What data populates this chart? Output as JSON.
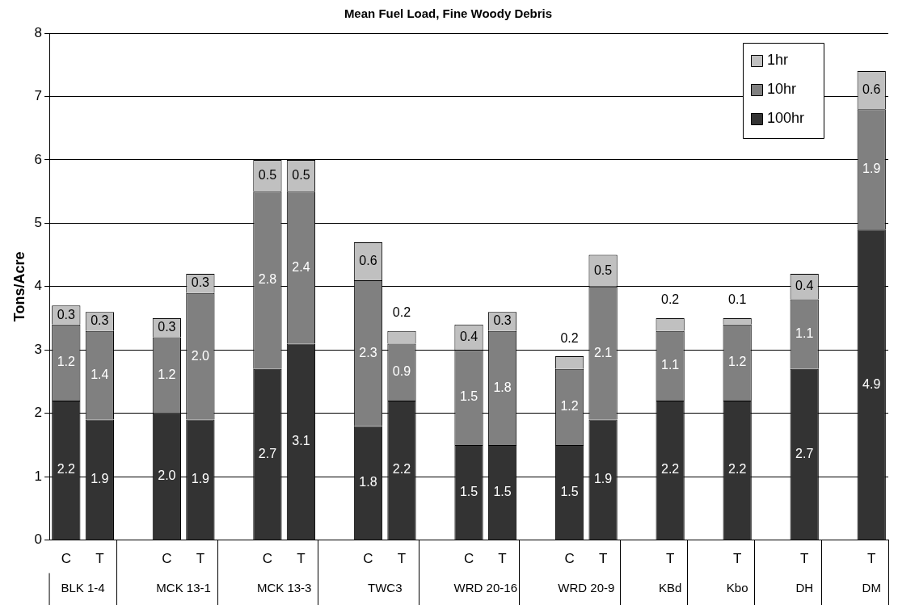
{
  "chart_data": {
    "type": "bar",
    "title": "Mean Fuel Load, Fine Woody Debris",
    "ylabel": "Tons/Acre",
    "categories": [
      "C",
      "T",
      null,
      "C",
      "T",
      null,
      "C",
      "T",
      null,
      "C",
      "T",
      null,
      "C",
      "T",
      null,
      "C",
      "T",
      null,
      "T",
      null,
      "T",
      null,
      "T",
      null,
      "T"
    ],
    "annotations": [
      "BLK 1-4",
      "MCK 13-1",
      "MCK 13-3",
      "TWC3",
      "WRD 20-16",
      "WRD 20-9",
      "KBd",
      "Kbo",
      "DH",
      "DM"
    ],
    "stacked": true,
    "series": [
      {
        "name": "100hr",
        "color": "#333333",
        "values": [
          2.2,
          1.9,
          null,
          2.0,
          1.9,
          null,
          2.7,
          3.1,
          null,
          1.8,
          2.2,
          null,
          1.5,
          1.5,
          null,
          1.5,
          1.9,
          null,
          2.2,
          null,
          2.2,
          null,
          2.7,
          null,
          4.9
        ],
        "value_labels": [
          "2.2",
          "1.9",
          null,
          "2.0",
          "1.9",
          null,
          "2.7",
          "3.1",
          null,
          "1.8",
          "2.2",
          null,
          "1.5",
          "1.5",
          null,
          "1.5",
          "1.9",
          null,
          "2.2",
          null,
          "2.2",
          null,
          "2.7",
          null,
          "4.9"
        ]
      },
      {
        "name": "10hr",
        "color": "#808080",
        "values": [
          1.2,
          1.4,
          null,
          1.2,
          2.0,
          null,
          2.8,
          2.4,
          null,
          2.3,
          0.9,
          null,
          1.5,
          1.8,
          null,
          1.2,
          2.1,
          null,
          1.1,
          null,
          1.2,
          null,
          1.1,
          null,
          1.9
        ],
        "value_labels": [
          "1.2",
          "1.4",
          null,
          "1.2",
          "2.0",
          null,
          "2.8",
          "2.4",
          null,
          "2.3",
          "0.9",
          null,
          "1.5",
          "1.8",
          null,
          "1.2",
          "2.1",
          null,
          "1.1",
          null,
          "1.2",
          null,
          "1.1",
          null,
          "1.9"
        ]
      },
      {
        "name": "1hr",
        "color": "#c0c0c0",
        "values": [
          0.3,
          0.3,
          null,
          0.3,
          0.3,
          null,
          0.5,
          0.5,
          null,
          0.6,
          0.2,
          null,
          0.4,
          0.3,
          null,
          0.2,
          0.5,
          null,
          0.2,
          null,
          0.1,
          null,
          0.4,
          null,
          0.6
        ],
        "value_labels": [
          "0.3",
          "0.3",
          null,
          "0.3",
          "0.3",
          null,
          "0.5",
          "0.5",
          null,
          "0.6",
          "0.2",
          null,
          "0.4",
          "0.3",
          null,
          "0.2",
          "0.5",
          null,
          "0.2",
          null,
          "0.1",
          null,
          "0.4",
          null,
          "0.6"
        ]
      }
    ],
    "ylim": [
      0,
      8
    ],
    "yticks": [
      0,
      1,
      2,
      3,
      4,
      5,
      6,
      7,
      8
    ],
    "grid": "y",
    "legend": "top right"
  }
}
